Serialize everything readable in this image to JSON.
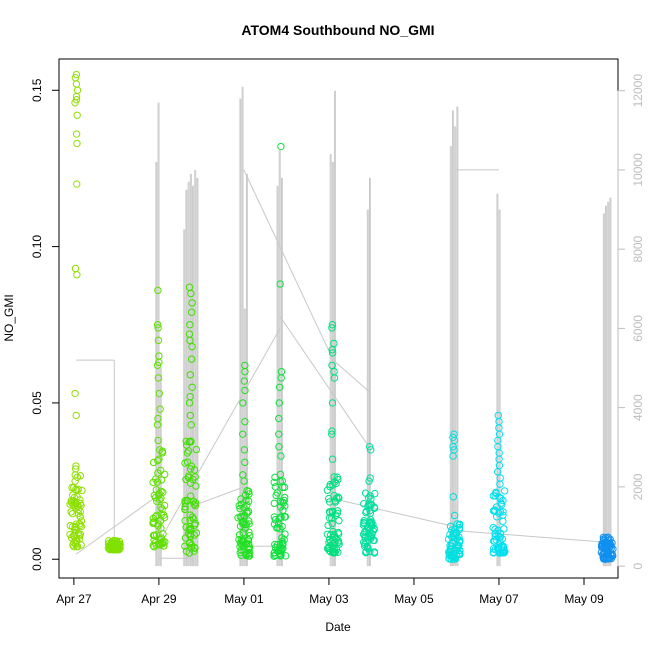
{
  "chart_data": {
    "type": "scatter",
    "title": "ATOM4 Southbound NO_GMI",
    "xlabel": "Date",
    "ylabel": "NO_GMI",
    "x_tick_labels": [
      "Apr 27",
      "Apr 29",
      "May 01",
      "May 03",
      "May 05",
      "May 07",
      "May 09"
    ],
    "x_tick_days": [
      0,
      2,
      4,
      6,
      8,
      10,
      12
    ],
    "xlim_days": [
      -0.35,
      12.8
    ],
    "ylim": [
      -0.006,
      0.16
    ],
    "y_ticks": [
      0.0,
      0.05,
      0.1,
      0.15
    ],
    "y_tick_labels": [
      "0.00",
      "0.05",
      "0.10",
      "0.15"
    ],
    "y2_ticks": [
      0,
      2000,
      4000,
      6000,
      8000,
      10000,
      12000
    ],
    "y2_tick_labels": [
      "0",
      "2000",
      "4000",
      "6000",
      "8000",
      "10000",
      "12000"
    ],
    "y2lim": [
      -300,
      12800
    ],
    "grid": false,
    "series": [
      {
        "kind": "points",
        "clusters": [
          {
            "x": 0.05,
            "y_min": 0.004,
            "y_max": 0.155,
            "color": "#8fe000",
            "dense_low": 0.03,
            "values": [
              0.155,
              0.154,
              0.152,
              0.15,
              0.148,
              0.147,
              0.146,
              0.142,
              0.136,
              0.133,
              0.12,
              0.093,
              0.091,
              0.053,
              0.046,
              0.027,
              0.025,
              0.022,
              0.02,
              0.017
            ]
          },
          {
            "x": 0.95,
            "y_min": 0.003,
            "y_max": 0.006,
            "color": "#80e000",
            "dense_low": 0.006,
            "values": [
              0.006,
              0.005
            ]
          },
          {
            "x": 2.0,
            "y_min": 0.004,
            "y_max": 0.086,
            "color": "#60e000",
            "dense_low": 0.035,
            "values": [
              0.086,
              0.075,
              0.074,
              0.07,
              0.065,
              0.063,
              0.062,
              0.058,
              0.053,
              0.048,
              0.045,
              0.043,
              0.038,
              0.035,
              0.032
            ]
          },
          {
            "x": 2.75,
            "y_min": 0.002,
            "y_max": 0.087,
            "color": "#40e000",
            "dense_low": 0.04,
            "values": [
              0.087,
              0.085,
              0.082,
              0.079,
              0.075,
              0.072,
              0.07,
              0.068,
              0.064,
              0.059,
              0.055,
              0.052,
              0.05,
              0.046,
              0.043
            ]
          },
          {
            "x": 4.0,
            "y_min": 0.001,
            "y_max": 0.062,
            "color": "#20e020",
            "dense_low": 0.022,
            "values": [
              0.062,
              0.06,
              0.057,
              0.054,
              0.05,
              0.044,
              0.04,
              0.035,
              0.031,
              0.027,
              0.025
            ]
          },
          {
            "x": 4.85,
            "y_min": 0.001,
            "y_max": 0.132,
            "color": "#10e040",
            "dense_low": 0.03,
            "values": [
              0.132,
              0.088,
              0.06,
              0.058,
              0.055,
              0.05,
              0.045,
              0.04,
              0.036,
              0.033
            ]
          },
          {
            "x": 6.1,
            "y_min": 0.002,
            "y_max": 0.075,
            "color": "#00e080",
            "dense_low": 0.028,
            "values": [
              0.075,
              0.074,
              0.069,
              0.067,
              0.066,
              0.062,
              0.06,
              0.058,
              0.05,
              0.041,
              0.04,
              0.032
            ]
          },
          {
            "x": 6.95,
            "y_min": 0.002,
            "y_max": 0.036,
            "color": "#00e0a0",
            "dense_low": 0.022,
            "values": [
              0.036,
              0.035,
              0.026,
              0.025
            ]
          },
          {
            "x": 8.95,
            "y_min": 0.0,
            "y_max": 0.04,
            "color": "#00e0e0",
            "dense_low": 0.012,
            "values": [
              0.04,
              0.039,
              0.038,
              0.036,
              0.035,
              0.033,
              0.02,
              0.014
            ]
          },
          {
            "x": 10.0,
            "y_min": 0.002,
            "y_max": 0.046,
            "color": "#00e0f0",
            "dense_low": 0.022,
            "values": [
              0.046,
              0.044,
              0.042,
              0.04,
              0.038,
              0.036,
              0.034,
              0.032,
              0.03,
              0.028,
              0.026,
              0.024
            ]
          },
          {
            "x": 12.55,
            "y_min": 0.0,
            "y_max": 0.007,
            "color": "#1090f0",
            "dense_low": 0.007,
            "values": [
              0.007,
              0.006,
              0.005
            ]
          }
        ]
      },
      {
        "kind": "altitude-line",
        "color": "#c8c8c8",
        "spikes": [
          {
            "x": 2.0,
            "peaks": [
              10200,
              11700,
              5000
            ]
          },
          {
            "x": 2.75,
            "peaks": [
              8500,
              9500,
              9700,
              9900,
              9600,
              10000,
              9800
            ]
          },
          {
            "x": 4.0,
            "peaks": [
              11800,
              12100,
              6500,
              9900
            ]
          },
          {
            "x": 4.85,
            "peaks": [
              9600,
              10500,
              9800
            ]
          },
          {
            "x": 6.1,
            "peaks": [
              10400,
              10200,
              12000
            ]
          },
          {
            "x": 6.95,
            "peaks": [
              9000,
              9800
            ]
          },
          {
            "x": 8.95,
            "peaks": [
              10600,
              11500,
              11100,
              11600
            ]
          },
          {
            "x": 10.0,
            "peaks": [
              9400,
              9000
            ]
          },
          {
            "x": 12.55,
            "peaks": [
              8900,
              9100,
              9200,
              9300
            ]
          }
        ],
        "segments": [
          [
            0.05,
            5200,
            0.95,
            5200
          ],
          [
            0.95,
            5200,
            0.95,
            400
          ],
          [
            0.05,
            300,
            2.0,
            1800
          ],
          [
            2.0,
            200,
            2.75,
            200
          ],
          [
            2.0,
            600,
            4.85,
            6000
          ],
          [
            2.75,
            1500,
            4.0,
            2000
          ],
          [
            4.0,
            10000,
            6.1,
            5200
          ],
          [
            4.0,
            500,
            4.85,
            500
          ],
          [
            4.85,
            6300,
            6.95,
            3000
          ],
          [
            6.1,
            5200,
            6.95,
            4400
          ],
          [
            6.1,
            1700,
            8.95,
            1000
          ],
          [
            8.95,
            10000,
            10.0,
            10000
          ],
          [
            8.95,
            900,
            12.55,
            600
          ]
        ]
      }
    ]
  }
}
